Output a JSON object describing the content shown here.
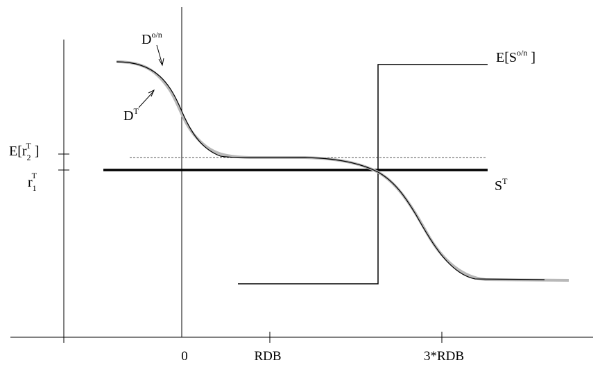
{
  "diagram": {
    "labels": {
      "d_on": {
        "base": "D",
        "sup": "o/n"
      },
      "d_t": {
        "base": "D",
        "sup": "T"
      },
      "e_s_on": {
        "prefix": "E[S",
        "sup": "o/n",
        "suffix": " ]"
      },
      "e_r2": {
        "prefix": "E[r",
        "sub": "2",
        "sup": "T",
        "suffix": " ]"
      },
      "r1": {
        "base": "r",
        "sub": "1",
        "sup": "T"
      },
      "s_t": {
        "base": "S",
        "sup": "T"
      }
    },
    "x_ticks": [
      "0",
      "RDB",
      "3*RDB"
    ],
    "colors": {
      "axis": "#000000",
      "curve_on": "#000000",
      "curve_t": "#b8b8b8",
      "supply": "#000000",
      "dashed": "#555555"
    }
  }
}
